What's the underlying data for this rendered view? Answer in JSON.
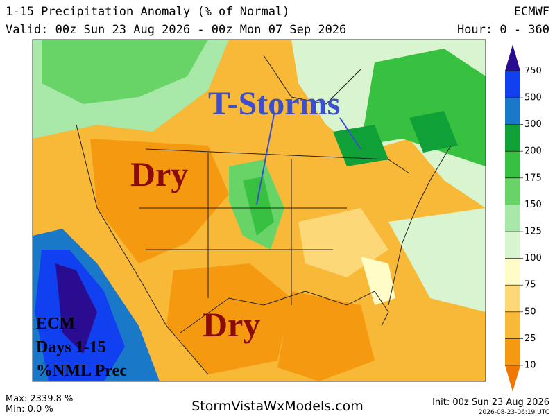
{
  "header": {
    "title": "1-15 Precipitation Anomaly (% of Normal)",
    "valid": "Valid: 00z Sun 23 Aug 2026 - 00z Mon 07 Sep 2026",
    "model": "ECMWF",
    "hour": "Hour: 0 - 360"
  },
  "annotations": {
    "storms": "T-Storms",
    "dry_north": "Dry",
    "dry_south": "Dry",
    "label_lines": [
      "ECM",
      "Days 1-15",
      "%NML Prec"
    ]
  },
  "legend": {
    "levels": [
      10,
      25,
      50,
      75,
      100,
      125,
      150,
      175,
      200,
      300,
      500,
      750
    ],
    "colors": [
      "#f07800",
      "#f59a10",
      "#f8b838",
      "#fcd878",
      "#fffcc8",
      "#d8f5d0",
      "#a8e8a8",
      "#68d468",
      "#38c040",
      "#10a038",
      "#1a78c8",
      "#1040f0",
      "#2a0c90"
    ]
  },
  "footer": {
    "max": "Max: 2339.8 %",
    "min": "Min: 0.0 %",
    "site": "StormVistaWxModels.com",
    "init": "Init: 00z Sun 23 Aug 2026",
    "stamp": "2026-08-23-06:19 UTC"
  }
}
